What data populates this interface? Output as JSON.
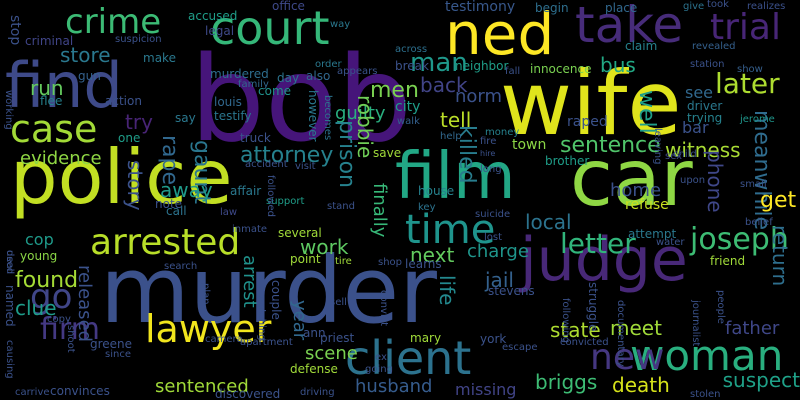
{
  "background": "#000000",
  "words": [
    {
      "text": "bob",
      "color": "#46157a",
      "rotate": false
    },
    {
      "text": "wife",
      "color": "#e0e41c",
      "rotate": false
    },
    {
      "text": "police",
      "color": "#c2df23",
      "rotate": false
    },
    {
      "text": "murder",
      "color": "#3b518b",
      "rotate": false
    },
    {
      "text": "car",
      "color": "#8fd744",
      "rotate": false
    },
    {
      "text": "ned",
      "color": "#fde725",
      "rotate": false
    },
    {
      "text": "find",
      "color": "#3e4a89",
      "rotate": false
    },
    {
      "text": "judge",
      "color": "#482878",
      "rotate": false
    },
    {
      "text": "film",
      "color": "#22a785",
      "rotate": false
    },
    {
      "text": "court",
      "color": "#35b779",
      "rotate": false
    },
    {
      "text": "take",
      "color": "#472c7a",
      "rotate": false
    },
    {
      "text": "case",
      "color": "#a2da37",
      "rotate": false
    },
    {
      "text": "lawyer",
      "color": "#f1e51d",
      "rotate": false
    },
    {
      "text": "client",
      "color": "#2c728e",
      "rotate": false
    },
    {
      "text": "woman",
      "color": "#29af7f",
      "rotate": false
    },
    {
      "text": "arrested",
      "color": "#b8de29",
      "rotate": false
    },
    {
      "text": "time",
      "color": "#1f948c",
      "rotate": false
    },
    {
      "text": "trial",
      "color": "#482677",
      "rotate": false
    },
    {
      "text": "crime",
      "color": "#3cbb75",
      "rotate": false
    },
    {
      "text": "new",
      "color": "#453781",
      "rotate": false
    },
    {
      "text": "firm",
      "color": "#443983",
      "rotate": false
    },
    {
      "text": "go",
      "color": "#404688",
      "rotate": false
    },
    {
      "text": "joseph",
      "color": "#3dbc74",
      "rotate": false
    },
    {
      "text": "letter",
      "color": "#31b57b",
      "rotate": false
    },
    {
      "text": "guilty",
      "color": "#29af7f",
      "rotate": false
    },
    {
      "text": "man",
      "color": "#1f988b",
      "rotate": false
    },
    {
      "text": "store",
      "color": "#2a788e",
      "rotate": false
    },
    {
      "text": "later",
      "color": "#addc30",
      "rotate": false
    },
    {
      "text": "bus",
      "color": "#22a884",
      "rotate": false
    },
    {
      "text": "well",
      "color": "#1f9e89",
      "rotate": true
    },
    {
      "text": "back",
      "color": "#414487",
      "rotate": false
    },
    {
      "text": "norm",
      "color": "#3b528b",
      "rotate": false
    },
    {
      "text": "tell",
      "color": "#bade28",
      "rotate": false
    },
    {
      "text": "men",
      "color": "#7ad151",
      "rotate": false
    },
    {
      "text": "run",
      "color": "#65cb5e",
      "rotate": false
    },
    {
      "text": "try",
      "color": "#482475",
      "rotate": false
    },
    {
      "text": "rape",
      "color": "#31688e",
      "rotate": true
    },
    {
      "text": "gaunt",
      "color": "#2a768e",
      "rotate": true
    },
    {
      "text": "story",
      "color": "#3b528b",
      "rotate": true
    },
    {
      "text": "evidence",
      "color": "#8fd744",
      "rotate": false
    },
    {
      "text": "away",
      "color": "#1f9a8a",
      "rotate": false
    },
    {
      "text": "attorney",
      "color": "#26828e",
      "rotate": false
    },
    {
      "text": "prison",
      "color": "#26828e",
      "rotate": true
    },
    {
      "text": "killed",
      "color": "#287d8e",
      "rotate": true
    },
    {
      "text": "robbie",
      "color": "#70cf57",
      "rotate": true
    },
    {
      "text": "sentence",
      "color": "#50c46a",
      "rotate": false
    },
    {
      "text": "town",
      "color": "#8bd646",
      "rotate": false
    },
    {
      "text": "witness",
      "color": "#a8db34",
      "rotate": false
    },
    {
      "text": "meanwhile",
      "color": "#2f6c8e",
      "rotate": true
    },
    {
      "text": "get",
      "color": "#fde725",
      "rotate": false
    },
    {
      "text": "home",
      "color": "#3b518b",
      "rotate": false
    },
    {
      "text": "refuse",
      "color": "#c8e020",
      "rotate": false
    },
    {
      "text": "phone",
      "color": "#3f4788",
      "rotate": true
    },
    {
      "text": "cop",
      "color": "#1f9a8a",
      "rotate": false
    },
    {
      "text": "found",
      "color": "#a5db36",
      "rotate": false
    },
    {
      "text": "work",
      "color": "#5ec962",
      "rotate": false
    },
    {
      "text": "charge",
      "color": "#1f958b",
      "rotate": false
    },
    {
      "text": "next",
      "color": "#63cb5f",
      "rotate": false
    },
    {
      "text": "local",
      "color": "#2c738e",
      "rotate": false
    },
    {
      "text": "finally",
      "color": "#37b878",
      "rotate": true
    },
    {
      "text": "jail",
      "color": "#34618d",
      "rotate": false
    },
    {
      "text": "life",
      "color": "#23898e",
      "rotate": true
    },
    {
      "text": "clue",
      "color": "#1e9c89",
      "rotate": false
    },
    {
      "text": "released",
      "color": "#3b528b",
      "rotate": true
    },
    {
      "text": "arrest",
      "color": "#20928c",
      "rotate": true
    },
    {
      "text": "year",
      "color": "#31688e",
      "rotate": true
    },
    {
      "text": "meet",
      "color": "#a0da39",
      "rotate": false
    },
    {
      "text": "state",
      "color": "#addc30",
      "rotate": false
    },
    {
      "text": "father",
      "color": "#3f4788",
      "rotate": false
    },
    {
      "text": "return",
      "color": "#2e6f8e",
      "rotate": true
    },
    {
      "text": "suspect",
      "color": "#1fa188",
      "rotate": false
    },
    {
      "text": "scene",
      "color": "#7ad151",
      "rotate": false
    },
    {
      "text": "sentenced",
      "color": "#a0da39",
      "rotate": false
    },
    {
      "text": "husband",
      "color": "#365c8d",
      "rotate": false
    },
    {
      "text": "briggs",
      "color": "#3dbc74",
      "rotate": false
    },
    {
      "text": "death",
      "color": "#d5e21a",
      "rotate": false
    },
    {
      "text": "missing",
      "color": "#414487",
      "rotate": false
    },
    {
      "text": "stop",
      "color": "#3b528b",
      "rotate": true
    },
    {
      "text": "criminal",
      "color": "#404588",
      "rotate": false
    },
    {
      "text": "accused",
      "color": "#1f9e89",
      "rotate": false
    },
    {
      "text": "legal",
      "color": "#3e4989",
      "rotate": false
    },
    {
      "text": "office",
      "color": "#3e4989",
      "rotate": false
    },
    {
      "text": "way",
      "color": "#2a788e",
      "rotate": false
    },
    {
      "text": "testimony",
      "color": "#38588c",
      "rotate": false
    },
    {
      "text": "begin",
      "color": "#2e6f8e",
      "rotate": false
    },
    {
      "text": "place",
      "color": "#31688e",
      "rotate": false
    },
    {
      "text": "give",
      "color": "#2c738e",
      "rotate": false
    },
    {
      "text": "took",
      "color": "#3b528b",
      "rotate": false
    },
    {
      "text": "realizes",
      "color": "#3b518b",
      "rotate": false
    },
    {
      "text": "across",
      "color": "#2d708e",
      "rotate": false
    },
    {
      "text": "suspicion",
      "color": "#3b528b",
      "rotate": false
    },
    {
      "text": "make",
      "color": "#2a788e",
      "rotate": false
    },
    {
      "text": "murdered",
      "color": "#2e6e8e",
      "rotate": false
    },
    {
      "text": "day",
      "color": "#2c738e",
      "rotate": false
    },
    {
      "text": "also",
      "color": "#31678e",
      "rotate": false
    },
    {
      "text": "appears",
      "color": "#3a538b",
      "rotate": false
    },
    {
      "text": "break",
      "color": "#3b528b",
      "rotate": false
    },
    {
      "text": "claim",
      "color": "#26828e",
      "rotate": false
    },
    {
      "text": "neighbor",
      "color": "#1f9e89",
      "rotate": false
    },
    {
      "text": "innocence",
      "color": "#7ad151",
      "rotate": false
    },
    {
      "text": "revealed",
      "color": "#34608d",
      "rotate": false
    },
    {
      "text": "station",
      "color": "#3b528b",
      "rotate": false
    },
    {
      "text": "show",
      "color": "#355f8d",
      "rotate": false
    },
    {
      "text": "gun",
      "color": "#34618d",
      "rotate": false
    },
    {
      "text": "come",
      "color": "#20928c",
      "rotate": false
    },
    {
      "text": "family",
      "color": "#31688e",
      "rotate": false
    },
    {
      "text": "louis",
      "color": "#31688e",
      "rotate": false
    },
    {
      "text": "testify",
      "color": "#2a768e",
      "rotate": false
    },
    {
      "text": "flee",
      "color": "#26828e",
      "rotate": false
    },
    {
      "text": "order",
      "color": "#2a788e",
      "rotate": false
    },
    {
      "text": "city",
      "color": "#1f9e89",
      "rotate": false
    },
    {
      "text": "however",
      "color": "#2a788e",
      "rotate": true
    },
    {
      "text": "becomes",
      "color": "#2c738e",
      "rotate": true
    },
    {
      "text": "driver",
      "color": "#2a788e",
      "rotate": false
    },
    {
      "text": "trying",
      "color": "#26828e",
      "rotate": false
    },
    {
      "text": "see",
      "color": "#31688e",
      "rotate": false
    },
    {
      "text": "jerome",
      "color": "#1f968b",
      "rotate": false
    },
    {
      "text": "working",
      "color": "#3b528b",
      "rotate": true
    },
    {
      "text": "say",
      "color": "#2a788e",
      "rotate": false
    },
    {
      "text": "one",
      "color": "#1f9e89",
      "rotate": false
    },
    {
      "text": "truck",
      "color": "#3b528b",
      "rotate": false
    },
    {
      "text": "walk",
      "color": "#34608d",
      "rotate": false
    },
    {
      "text": "help",
      "color": "#31688e",
      "rotate": false
    },
    {
      "text": "money",
      "color": "#26828e",
      "rotate": false
    },
    {
      "text": "fire",
      "color": "#3b528b",
      "rotate": false
    },
    {
      "text": "raped",
      "color": "#3b528b",
      "rotate": false
    },
    {
      "text": "bar",
      "color": "#3b528b",
      "rotate": false
    },
    {
      "text": "save",
      "color": "#a0da39",
      "rotate": false
    },
    {
      "text": "brother",
      "color": "#1f9e89",
      "rotate": false
    },
    {
      "text": "child",
      "color": "#3b528b",
      "rotate": false
    },
    {
      "text": "sex",
      "color": "#3e4989",
      "rotate": false
    },
    {
      "text": "accident",
      "color": "#3b528b",
      "rotate": false
    },
    {
      "text": "visit",
      "color": "#3b528b",
      "rotate": false
    },
    {
      "text": "affair",
      "color": "#2a788e",
      "rotate": false
    },
    {
      "text": "support",
      "color": "#1f9e89",
      "rotate": false
    },
    {
      "text": "house",
      "color": "#26828e",
      "rotate": false
    },
    {
      "text": "note",
      "color": "#3b528b",
      "rotate": false
    },
    {
      "text": "call",
      "color": "#2c738e",
      "rotate": false
    },
    {
      "text": "law",
      "color": "#3e4989",
      "rotate": false
    },
    {
      "text": "stand",
      "color": "#3b528b",
      "rotate": false
    },
    {
      "text": "key",
      "color": "#2c738e",
      "rotate": false
    },
    {
      "text": "suicide",
      "color": "#3b528b",
      "rotate": false
    },
    {
      "text": "small",
      "color": "#3b528b",
      "rotate": false
    },
    {
      "text": "upon",
      "color": "#3b528b",
      "rotate": false
    },
    {
      "text": "belief",
      "color": "#3b528b",
      "rotate": false
    },
    {
      "text": "inmate",
      "color": "#3b528b",
      "rotate": false
    },
    {
      "text": "several",
      "color": "#a0da39",
      "rotate": false
    },
    {
      "text": "lost",
      "color": "#3b528b",
      "rotate": false
    },
    {
      "text": "attempt",
      "color": "#2a788e",
      "rotate": false
    },
    {
      "text": "water",
      "color": "#3b528b",
      "rotate": false
    },
    {
      "text": "friend",
      "color": "#a0da39",
      "rotate": false
    },
    {
      "text": "young",
      "color": "#8bd646",
      "rotate": false
    },
    {
      "text": "point",
      "color": "#a0da39",
      "rotate": false
    },
    {
      "text": "tire",
      "color": "#a0da39",
      "rotate": false
    },
    {
      "text": "shop",
      "color": "#3b528b",
      "rotate": false
    },
    {
      "text": "learns",
      "color": "#3b528b",
      "rotate": false
    },
    {
      "text": "struggle",
      "color": "#3b528b",
      "rotate": true
    },
    {
      "text": "people",
      "color": "#3b528b",
      "rotate": true
    },
    {
      "text": "used",
      "color": "#3b528b",
      "rotate": true
    },
    {
      "text": "named",
      "color": "#3b528b",
      "rotate": true
    },
    {
      "text": "deal",
      "color": "#3b528b",
      "rotate": true
    },
    {
      "text": "search",
      "color": "#3b528b",
      "rotate": false
    },
    {
      "text": "plan",
      "color": "#3b528b",
      "rotate": true
    },
    {
      "text": "watching",
      "color": "#3b528b",
      "rotate": true
    },
    {
      "text": "couple",
      "color": "#3b528b",
      "rotate": true
    },
    {
      "text": "sell",
      "color": "#3b528b",
      "rotate": false
    },
    {
      "text": "convict",
      "color": "#3b528b",
      "rotate": true
    },
    {
      "text": "stevens",
      "color": "#3b528b",
      "rotate": false
    },
    {
      "text": "following",
      "color": "#3b528b",
      "rotate": true
    },
    {
      "text": "documentary",
      "color": "#3b528b",
      "rotate": true
    },
    {
      "text": "journalist",
      "color": "#3b528b",
      "rotate": true
    },
    {
      "text": "copy",
      "color": "#3b528b",
      "rotate": false
    },
    {
      "text": "shoot",
      "color": "#3b528b",
      "rotate": true
    },
    {
      "text": "greene",
      "color": "#3b528b",
      "rotate": false
    },
    {
      "text": "since",
      "color": "#3b528b",
      "rotate": false
    },
    {
      "text": "camera",
      "color": "#3b528b",
      "rotate": false
    },
    {
      "text": "apartment",
      "color": "#3b528b",
      "rotate": false
    },
    {
      "text": "ann",
      "color": "#3b528b",
      "rotate": false
    },
    {
      "text": "priest",
      "color": "#3b528b",
      "rotate": false
    },
    {
      "text": "mary",
      "color": "#a0da39",
      "rotate": false
    },
    {
      "text": "york",
      "color": "#3b528b",
      "rotate": false
    },
    {
      "text": "escape",
      "color": "#3b528b",
      "rotate": false
    },
    {
      "text": "convicted",
      "color": "#3b528b",
      "rotate": false
    },
    {
      "text": "defense",
      "color": "#a0da39",
      "rotate": false
    },
    {
      "text": "ex",
      "color": "#3b528b",
      "rotate": false
    },
    {
      "text": "going",
      "color": "#3b528b",
      "rotate": false
    },
    {
      "text": "causing",
      "color": "#3b528b",
      "rotate": true
    },
    {
      "text": "carrive",
      "color": "#3b528b",
      "rotate": false
    },
    {
      "text": "convinces",
      "color": "#3b528b",
      "rotate": false
    },
    {
      "text": "discovered",
      "color": "#3b528b",
      "rotate": false
    },
    {
      "text": "driving",
      "color": "#3b528b",
      "rotate": false
    },
    {
      "text": "stolen",
      "color": "#3b528b",
      "rotate": false
    },
    {
      "text": "long",
      "color": "#3b528b",
      "rotate": false
    },
    {
      "text": "hire",
      "color": "#3b528b",
      "rotate": false
    },
    {
      "text": "leaving",
      "color": "#3b528b",
      "rotate": true
    },
    {
      "text": "followed",
      "color": "#3b528b",
      "rotate": true
    },
    {
      "text": "fall",
      "color": "#3b528b",
      "rotate": false
    },
    {
      "text": "action",
      "color": "#3b528b",
      "rotate": false
    }
  ]
}
